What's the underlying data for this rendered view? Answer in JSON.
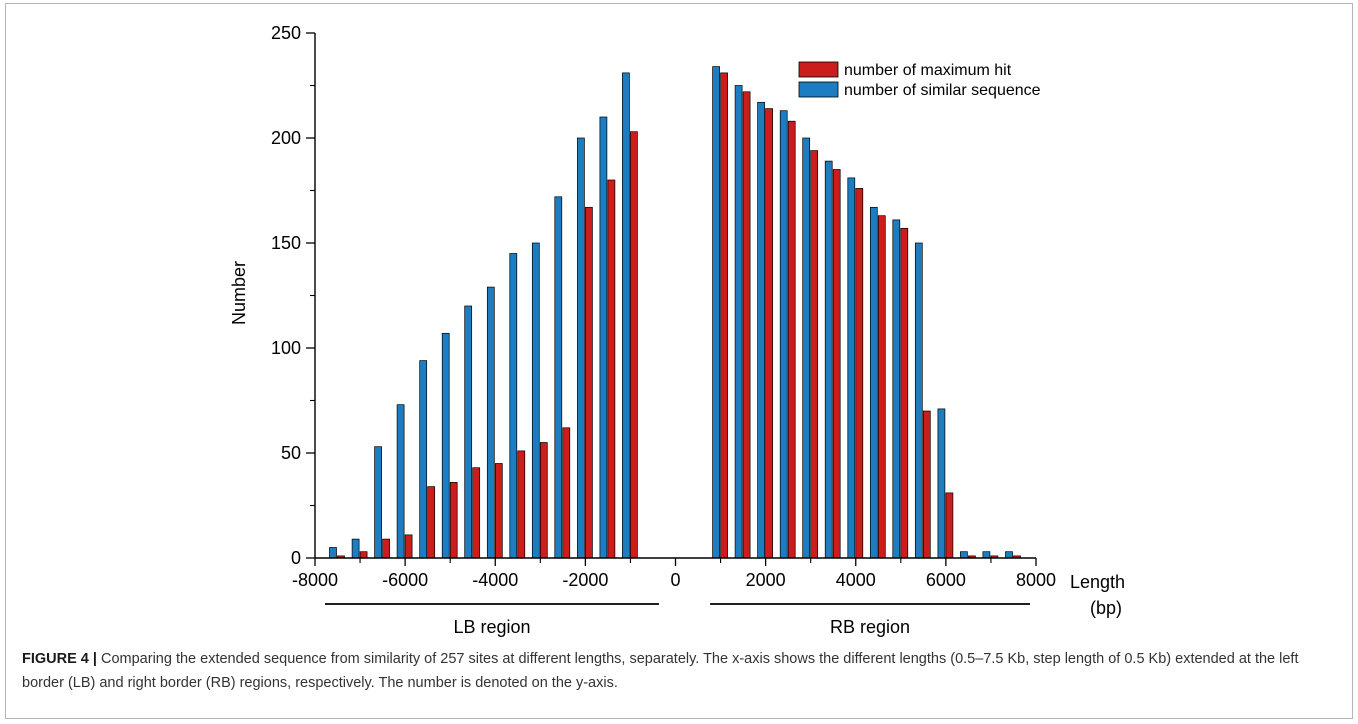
{
  "chart_data": {
    "type": "bar",
    "title": "",
    "ylabel": "Number",
    "xlabel_line1": "Length",
    "xlabel_line2": "(bp)",
    "xlim": [
      -8000,
      8000
    ],
    "ylim": [
      0,
      250
    ],
    "x_ticks": [
      -8000,
      -6000,
      -4000,
      -2000,
      0,
      2000,
      4000,
      6000,
      8000
    ],
    "x_tick_labels": [
      "-8000",
      "-6000",
      "-4000",
      "-2000",
      "0",
      "2000",
      "4000",
      "6000",
      "8000"
    ],
    "y_ticks": [
      0,
      50,
      100,
      150,
      200,
      250
    ],
    "y_tick_labels": [
      "0",
      "50",
      "100",
      "150",
      "200",
      "250"
    ],
    "grid": false,
    "legend_position": "top-right",
    "regions": [
      {
        "label": "LB region",
        "from": -8000,
        "to": -500
      },
      {
        "label": "RB region",
        "from": 500,
        "to": 8000
      }
    ],
    "x": [
      -7500,
      -7000,
      -6500,
      -6000,
      -5500,
      -5000,
      -4500,
      -4000,
      -3500,
      -3000,
      -2500,
      -2000,
      -1500,
      -1000,
      1000,
      1500,
      2000,
      2500,
      3000,
      3500,
      4000,
      4500,
      5000,
      5500,
      6000,
      6500,
      7000,
      7500
    ],
    "series": [
      {
        "name": "number of maximum hit",
        "color": "#cc1d1d",
        "values": [
          1,
          3,
          9,
          11,
          34,
          36,
          43,
          45,
          51,
          55,
          62,
          167,
          180,
          203,
          231,
          222,
          214,
          208,
          194,
          185,
          176,
          163,
          157,
          70,
          31,
          1,
          1,
          1
        ]
      },
      {
        "name": "number of similar sequence",
        "color": "#1e7dc0",
        "values": [
          5,
          9,
          53,
          73,
          94,
          107,
          120,
          129,
          145,
          150,
          172,
          200,
          210,
          231,
          234,
          225,
          217,
          213,
          200,
          189,
          181,
          167,
          161,
          150,
          71,
          3,
          3,
          3
        ]
      }
    ]
  },
  "caption": {
    "label": "FIGURE 4 |",
    "text": " Comparing the extended sequence from similarity of 257 sites at different lengths, separately. The x-axis shows the different lengths (0.5–7.5 Kb, step length of 0.5 Kb) extended at the left border (LB) and right border (RB) regions, respectively. The number is denoted on the y-axis."
  }
}
